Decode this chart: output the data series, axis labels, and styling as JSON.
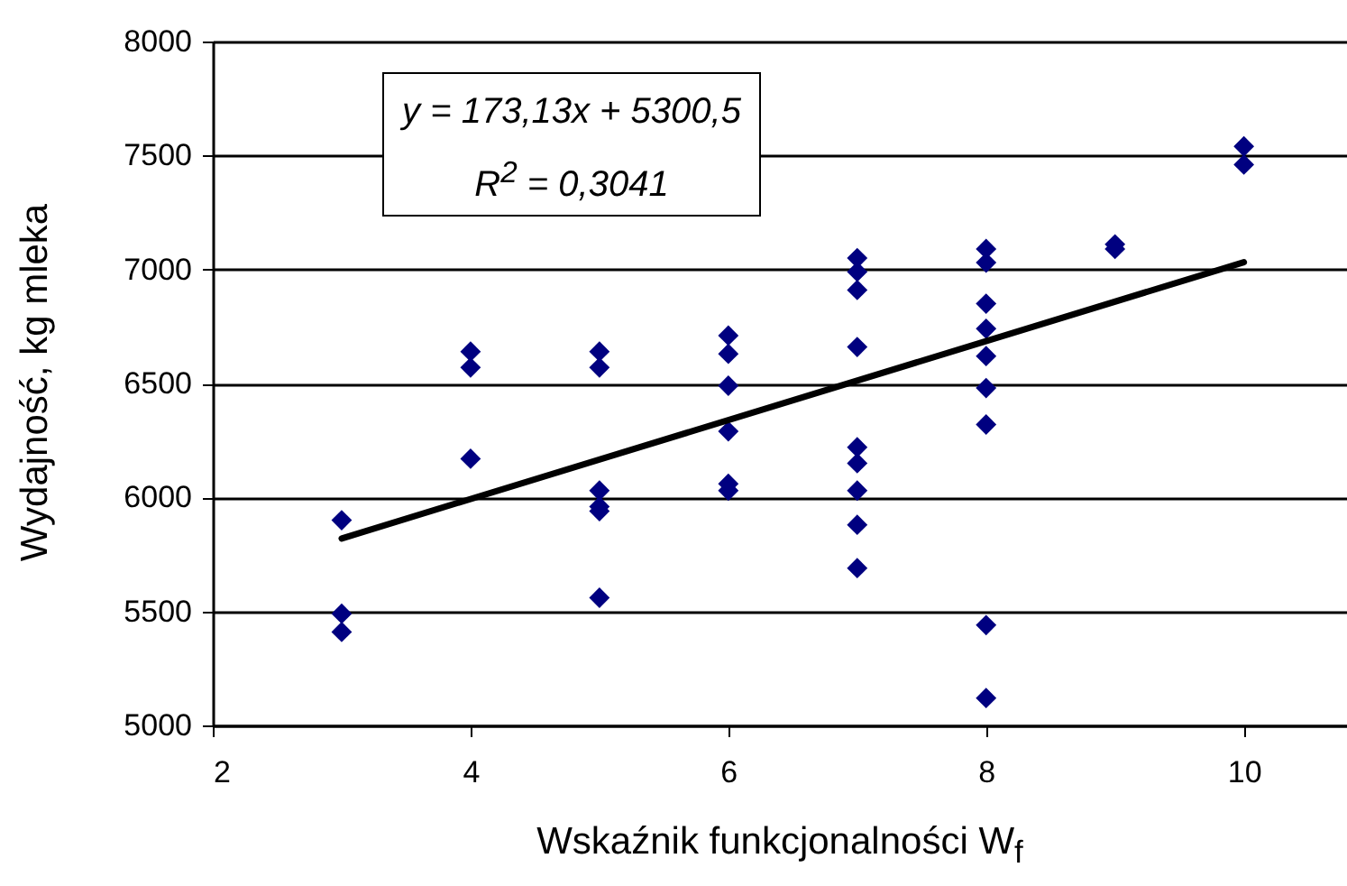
{
  "chart_data": {
    "type": "scatter",
    "xlabel": "Wskaźnik funkcjonalności  W$_{f}$",
    "ylabel": "Wydajność, kg mleka",
    "annotations": [
      "y = 173,13x + 5300,5",
      "R$^{2}$ = 0,3041"
    ],
    "xlim": [
      2,
      10.8
    ],
    "xticks": [
      2,
      4,
      6,
      8,
      10
    ],
    "ylim": [
      5000,
      8000
    ],
    "yticks": [
      5000,
      5500,
      6000,
      6500,
      7000,
      7500,
      8000
    ],
    "grid": "y",
    "series": [
      {
        "marker": "diamond",
        "color": "#000080",
        "x": [
          3,
          3,
          3,
          4,
          4,
          4,
          5,
          5,
          5,
          5,
          5,
          5,
          6,
          6,
          6,
          6,
          6,
          6,
          7,
          7,
          7,
          7,
          7,
          7,
          7,
          7,
          7,
          8,
          8,
          8,
          8,
          8,
          8,
          8,
          8,
          8,
          9,
          9,
          10,
          10
        ],
        "values": [
          5900,
          5490,
          5410,
          6640,
          6570,
          6170,
          6640,
          6570,
          6030,
          5960,
          5940,
          5560,
          6710,
          6630,
          6490,
          6290,
          6060,
          6030,
          7050,
          6990,
          6910,
          6660,
          6220,
          6150,
          6030,
          5880,
          5690,
          7090,
          7030,
          6850,
          6740,
          6620,
          6480,
          6320,
          5440,
          5120,
          7110,
          7090,
          7540,
          7460
        ]
      },
      {
        "type": "line",
        "marker": "none",
        "color": "#000000",
        "x": [
          3,
          10
        ],
        "values": [
          5820,
          7032
        ]
      }
    ]
  }
}
